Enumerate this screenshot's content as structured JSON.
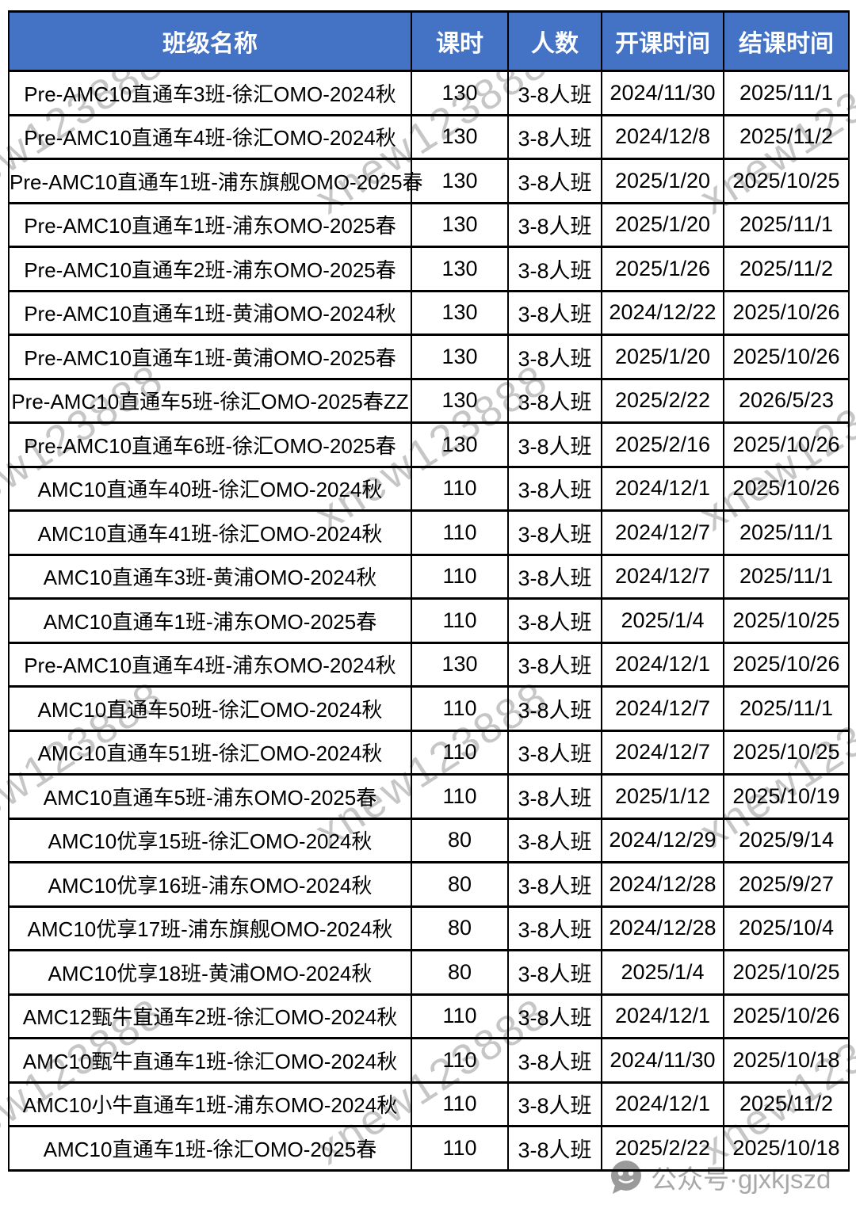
{
  "table": {
    "headers": [
      "班级名称",
      "课时",
      "人数",
      "开课时间",
      "结课时间"
    ],
    "rows": [
      [
        "Pre-AMC10直通车3班-徐汇OMO-2024秋",
        "130",
        "3-8人班",
        "2024/11/30",
        "2025/11/1"
      ],
      [
        "Pre-AMC10直通车4班-徐汇OMO-2024秋",
        "130",
        "3-8人班",
        "2024/12/8",
        "2025/11/2"
      ],
      [
        "Pre-AMC10直通车1班-浦东旗舰OMO-2025春",
        "130",
        "3-8人班",
        "2025/1/20",
        "2025/10/25"
      ],
      [
        "Pre-AMC10直通车1班-浦东OMO-2025春",
        "130",
        "3-8人班",
        "2025/1/20",
        "2025/11/1"
      ],
      [
        "Pre-AMC10直通车2班-浦东OMO-2025春",
        "130",
        "3-8人班",
        "2025/1/26",
        "2025/11/2"
      ],
      [
        "Pre-AMC10直通车1班-黄浦OMO-2024秋",
        "130",
        "3-8人班",
        "2024/12/22",
        "2025/10/26"
      ],
      [
        "Pre-AMC10直通车1班-黄浦OMO-2025春",
        "130",
        "3-8人班",
        "2025/1/20",
        "2025/10/26"
      ],
      [
        "Pre-AMC10直通车5班-徐汇OMO-2025春ZZ",
        "130",
        "3-8人班",
        "2025/2/22",
        "2026/5/23"
      ],
      [
        "Pre-AMC10直通车6班-徐汇OMO-2025春",
        "130",
        "3-8人班",
        "2025/2/16",
        "2025/10/26"
      ],
      [
        "AMC10直通车40班-徐汇OMO-2024秋",
        "110",
        "3-8人班",
        "2024/12/1",
        "2025/10/26"
      ],
      [
        "AMC10直通车41班-徐汇OMO-2024秋",
        "110",
        "3-8人班",
        "2024/12/7",
        "2025/11/1"
      ],
      [
        "AMC10直通车3班-黄浦OMO-2024秋",
        "110",
        "3-8人班",
        "2024/12/7",
        "2025/11/1"
      ],
      [
        "AMC10直通车1班-浦东OMO-2025春",
        "110",
        "3-8人班",
        "2025/1/4",
        "2025/10/25"
      ],
      [
        "Pre-AMC10直通车4班-浦东OMO-2024秋",
        "130",
        "3-8人班",
        "2024/12/1",
        "2025/10/26"
      ],
      [
        "AMC10直通车50班-徐汇OMO-2024秋",
        "110",
        "3-8人班",
        "2024/12/7",
        "2025/11/1"
      ],
      [
        "AMC10直通车51班-徐汇OMO-2024秋",
        "110",
        "3-8人班",
        "2024/12/7",
        "2025/10/25"
      ],
      [
        "AMC10直通车5班-浦东OMO-2025春",
        "110",
        "3-8人班",
        "2025/1/12",
        "2025/10/19"
      ],
      [
        "AMC10优享15班-徐汇OMO-2024秋",
        "80",
        "3-8人班",
        "2024/12/29",
        "2025/9/14"
      ],
      [
        "AMC10优享16班-浦东OMO-2024秋",
        "80",
        "3-8人班",
        "2024/12/28",
        "2025/9/27"
      ],
      [
        "AMC10优享17班-浦东旗舰OMO-2024秋",
        "80",
        "3-8人班",
        "2024/12/28",
        "2025/10/4"
      ],
      [
        "AMC10优享18班-黄浦OMO-2024秋",
        "80",
        "3-8人班",
        "2025/1/4",
        "2025/10/25"
      ],
      [
        "AMC12甄牛直通车2班-徐汇OMO-2024秋",
        "110",
        "3-8人班",
        "2024/12/1",
        "2025/10/26"
      ],
      [
        "AMC10甄牛直通车1班-徐汇OMO-2024秋",
        "110",
        "3-8人班",
        "2024/11/30",
        "2025/10/18"
      ],
      [
        "AMC10小牛直通车1班-浦东OMO-2024秋",
        "110",
        "3-8人班",
        "2024/12/1",
        "2025/11/2"
      ],
      [
        "AMC10直通车1班-徐汇OMO-2025春",
        "110",
        "3-8人班",
        "2025/2/22",
        "2025/10/18"
      ]
    ]
  },
  "watermark": {
    "diagonal_text": "xnew123888",
    "footer_text": "公众号·gjxkjszd",
    "footer_icon": "wechat-icon"
  },
  "colors": {
    "header_bg": "#4472C4",
    "header_text": "#FFFFFF",
    "border": "#000000",
    "watermark_gray": "#8c8c8c"
  }
}
